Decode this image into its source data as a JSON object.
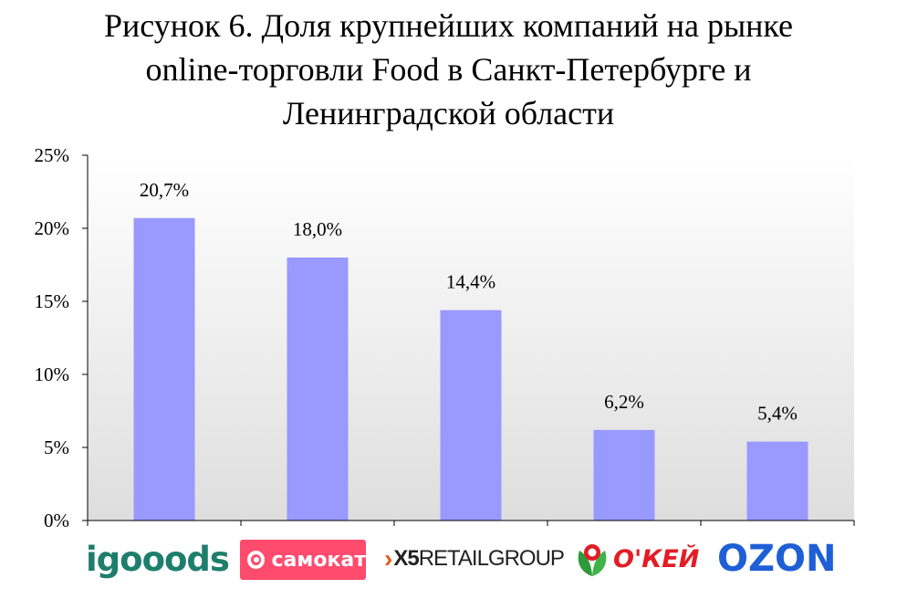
{
  "title_lines": [
    "Рисунок 6. Доля крупнейших компаний на рынке",
    "online-торговли Food в Санкт-Петербурге и",
    "Ленинградской области"
  ],
  "colors": {
    "bar": "#9999ff",
    "plot_bg_top": "#ffffff",
    "plot_bg_bottom": "#dedede",
    "axis": "#000000"
  },
  "chart_data": {
    "type": "bar",
    "title": "Рисунок 6. Доля крупнейших компаний на рынке online-торговли Food в Санкт-Петербурге и Ленинградской области",
    "categories": [
      "igooods",
      "самокат",
      "X5RETAILGROUP",
      "О'КЕЙ",
      "OZON"
    ],
    "values": [
      20.7,
      18.0,
      14.4,
      6.2,
      5.4
    ],
    "data_labels": [
      "20,7%",
      "18,0%",
      "14,4%",
      "6,2%",
      "5,4%"
    ],
    "y_ticks": [
      "0%",
      "5%",
      "10%",
      "15%",
      "20%",
      "25%"
    ],
    "ylim": [
      0,
      25
    ],
    "xlabel": "",
    "ylabel": "",
    "grid": false,
    "legend": "none"
  },
  "logos": {
    "igooods": "igooods",
    "samokat": "самокат",
    "x5_prefix": "X5",
    "x5_suffix": "RETAILGROUP",
    "okey": "О'КЕЙ",
    "ozon": "OZON"
  }
}
